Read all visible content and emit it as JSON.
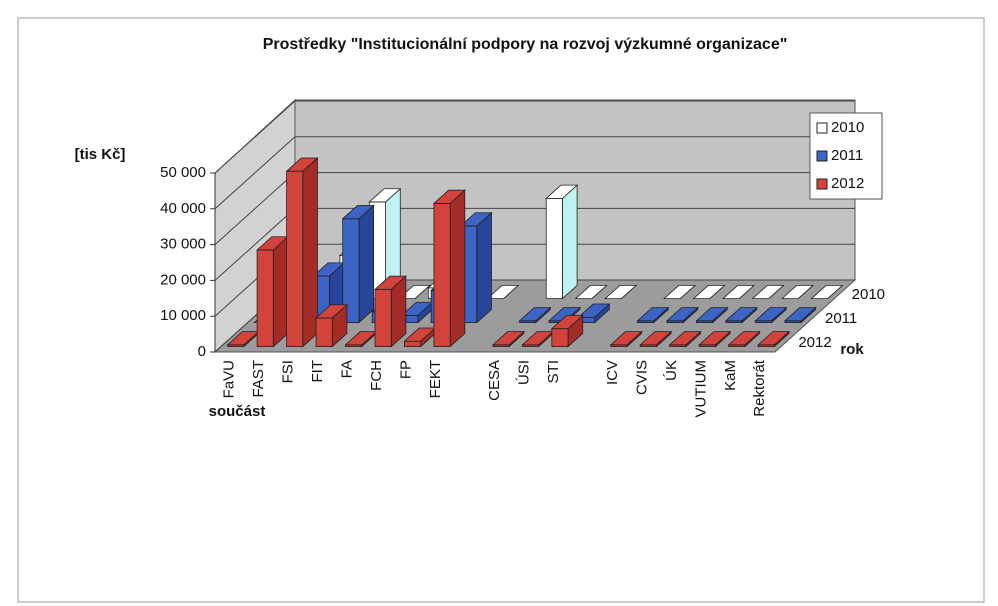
{
  "chart_data": {
    "type": "bar3d",
    "title": "Prostředky \"Institucionální podpory na rozvoj výzkumné organizace\"",
    "y_label": "[tis Kč]",
    "x_label": "součást",
    "z_label": "rok",
    "categories": [
      "FaVU",
      "FAST",
      "FSI",
      "FIT",
      "FA",
      "FCH",
      "FP",
      "FEKT",
      null,
      "CESA",
      "ÚSI",
      "STI",
      null,
      "ICV",
      "CVIS",
      "ÚK",
      "VUTIUM",
      "KaM",
      "Rektorát"
    ],
    "series": [
      {
        "name": "2010",
        "color": "#ffffff",
        "side_color": "#bff3f3",
        "values": [
          0,
          0,
          12000,
          27000,
          0,
          3000,
          3000,
          0,
          null,
          28000,
          0,
          0,
          null,
          0,
          0,
          0,
          0,
          0,
          0
        ]
      },
      {
        "name": "2011",
        "color": "#3b64c4",
        "side_color": "#27459a",
        "values": [
          0,
          0,
          13000,
          29000,
          3000,
          2000,
          9000,
          27000,
          null,
          500,
          500,
          1500,
          null,
          500,
          500,
          500,
          500,
          500,
          500
        ]
      },
      {
        "name": "2012",
        "color": "#d2433c",
        "side_color": "#a52b26",
        "values": [
          500,
          27000,
          49000,
          8000,
          500,
          16000,
          1500,
          40000,
          null,
          500,
          500,
          5000,
          null,
          500,
          500,
          500,
          500,
          500,
          500
        ]
      }
    ],
    "ylim": [
      0,
      50000
    ],
    "yticks": [
      0,
      {
        "value": 10000,
        "label": "10 000"
      },
      {
        "value": 20000,
        "label": "20 000"
      },
      {
        "value": 30000,
        "label": "30 000"
      },
      {
        "value": 40000,
        "label": "40 000"
      },
      {
        "value": 50000,
        "label": "50 000"
      }
    ],
    "grid": true,
    "legend": "upper right"
  }
}
